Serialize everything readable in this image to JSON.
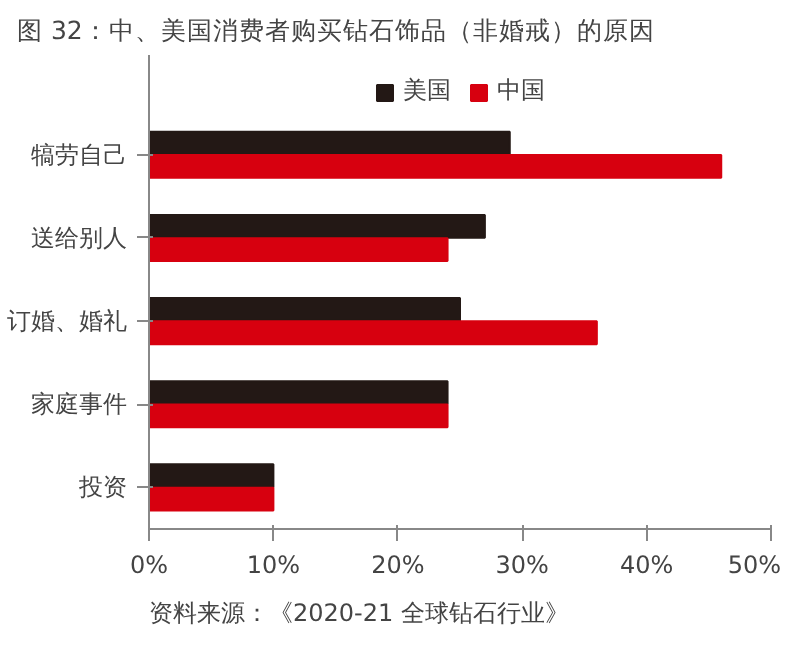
{
  "chart_data": {
    "type": "bar",
    "orientation": "horizontal",
    "title": "图 32：中、美国消费者购买钻石饰品（非婚戒）的原因",
    "categories": [
      "犒劳自己",
      "送给别人",
      "订婚、婚礼",
      "家庭事件",
      "投资"
    ],
    "series": [
      {
        "name": "美国",
        "color": "#231815",
        "values": [
          29,
          27,
          25,
          24,
          10
        ]
      },
      {
        "name": "中国",
        "color": "#d7000f",
        "values": [
          46,
          24,
          36,
          24,
          10
        ]
      }
    ],
    "xlim": [
      0,
      50
    ],
    "xticks": [
      {
        "value": 0,
        "label": "0%"
      },
      {
        "value": 10,
        "label": "10%"
      },
      {
        "value": 20,
        "label": "20%"
      },
      {
        "value": 30,
        "label": "30%"
      },
      {
        "value": 40,
        "label": "40%"
      },
      {
        "value": 50,
        "label": "50%"
      }
    ],
    "grid": false,
    "legend": "top",
    "annotations": [
      "资料来源：《2020-21 全球钻石行业》"
    ]
  }
}
